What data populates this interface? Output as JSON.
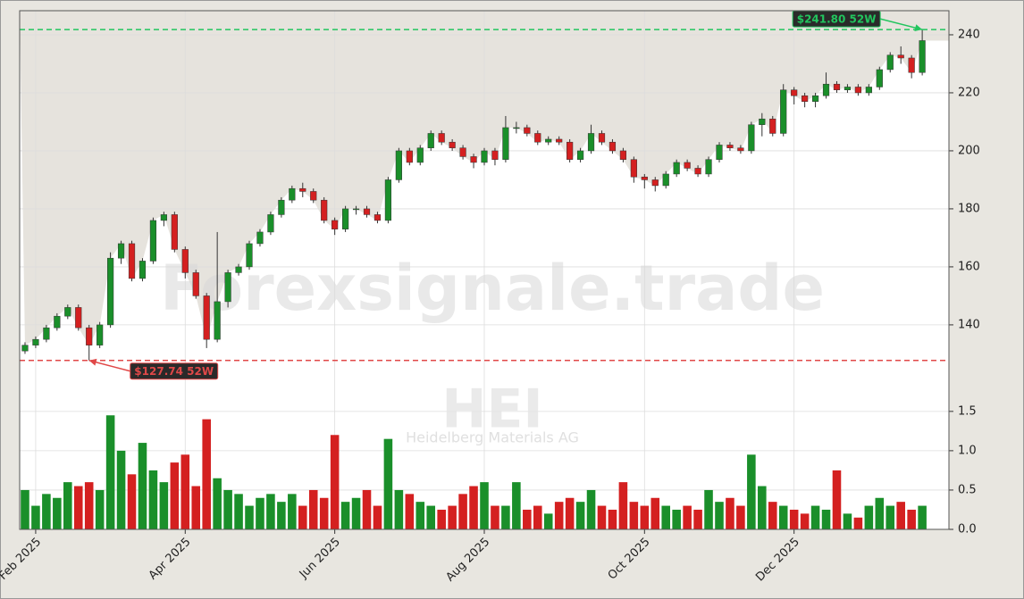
{
  "chart_data": {
    "type": "candlestick",
    "watermark": "Forexsignale.trade",
    "symbol": "HEI",
    "company": "Heidelberg Materials AG",
    "categories": [
      null,
      "Feb 2025",
      null,
      null,
      null,
      null,
      null,
      null,
      null,
      null,
      null,
      null,
      null,
      null,
      null,
      "Apr 2025",
      null,
      null,
      null,
      null,
      null,
      null,
      null,
      null,
      null,
      null,
      null,
      null,
      null,
      "Jun 2025",
      null,
      null,
      null,
      null,
      null,
      null,
      null,
      null,
      null,
      null,
      null,
      null,
      null,
      "Aug 2025",
      null,
      null,
      null,
      null,
      null,
      null,
      null,
      null,
      null,
      null,
      null,
      null,
      null,
      null,
      "Oct 2025",
      null,
      null,
      null,
      null,
      null,
      null,
      null,
      null,
      null,
      null,
      null,
      null,
      null,
      "Dec 2025",
      null,
      null,
      null,
      null,
      null,
      null,
      null,
      null,
      null,
      null,
      null,
      null
    ],
    "open": [
      131,
      133,
      135,
      139,
      143,
      146,
      139,
      133,
      140,
      163,
      168,
      156,
      162,
      176,
      178,
      166,
      158,
      150,
      135,
      148,
      158,
      160,
      168,
      172,
      178,
      183,
      187,
      186,
      183,
      176,
      173,
      180,
      180,
      178,
      176,
      190,
      200,
      196,
      201,
      206,
      203,
      201,
      198,
      196,
      200,
      197,
      208,
      208,
      206,
      203,
      204,
      203,
      197,
      200,
      206,
      203,
      200,
      197,
      191,
      190,
      188,
      192,
      196,
      194,
      192,
      197,
      202,
      201,
      200,
      209,
      211,
      206,
      221,
      219,
      217,
      219,
      223,
      221,
      222,
      220,
      222,
      228,
      233,
      232,
      227
    ],
    "high": [
      134,
      136,
      140,
      144,
      147,
      147,
      140,
      141,
      165,
      169,
      169,
      163,
      177,
      179,
      179,
      167,
      159,
      151,
      172,
      159,
      161,
      169,
      173,
      179,
      184,
      188,
      189,
      187,
      184,
      177,
      181,
      181,
      181,
      179,
      191,
      201,
      201,
      202,
      207,
      207,
      204,
      202,
      199,
      201,
      201,
      212,
      210,
      209,
      207,
      205,
      205,
      204,
      201,
      209,
      207,
      204,
      201,
      198,
      192,
      191,
      193,
      197,
      197,
      195,
      198,
      203,
      203,
      202,
      210,
      213,
      212,
      223,
      222,
      220,
      220,
      227,
      224,
      223,
      223,
      223,
      229,
      234,
      236,
      233,
      241.8
    ],
    "low": [
      130,
      132,
      134,
      138,
      142,
      138,
      127.74,
      132,
      139,
      161,
      155,
      155,
      161,
      174,
      165,
      156,
      149,
      132,
      134,
      146,
      157,
      159,
      167,
      171,
      177,
      182,
      184,
      182,
      175,
      171,
      172,
      178,
      177,
      175,
      175,
      189,
      195,
      195,
      200,
      202,
      200,
      197,
      194,
      195,
      195,
      196,
      206,
      205,
      202,
      202,
      202,
      196,
      196,
      199,
      202,
      199,
      196,
      189,
      187,
      186,
      187,
      191,
      193,
      191,
      191,
      196,
      200,
      199,
      199,
      205,
      205,
      205,
      216,
      215,
      215,
      218,
      220,
      220,
      219,
      219,
      221,
      227,
      230,
      225,
      226
    ],
    "close": [
      133,
      135,
      139,
      143,
      146,
      139,
      133,
      140,
      163,
      168,
      156,
      162,
      176,
      178,
      166,
      158,
      150,
      135,
      148,
      158,
      160,
      168,
      172,
      178,
      183,
      187,
      186,
      183,
      176,
      173,
      180,
      180,
      178,
      176,
      190,
      200,
      196,
      201,
      206,
      203,
      201,
      198,
      196,
      200,
      197,
      208,
      208,
      206,
      203,
      204,
      203,
      197,
      200,
      206,
      203,
      200,
      197,
      191,
      190,
      188,
      192,
      196,
      194,
      192,
      197,
      202,
      201,
      200,
      209,
      211,
      206,
      221,
      219,
      217,
      219,
      223,
      221,
      222,
      220,
      222,
      228,
      233,
      232,
      227,
      238
    ],
    "up_color": "#1a8f2a",
    "down_color": "#d42020",
    "ylim": [
      121.2,
      248.3
    ],
    "yticks": [
      140,
      160,
      180,
      200,
      220,
      240
    ],
    "grid": true,
    "volume": {
      "values": [
        0.5,
        0.3,
        0.45,
        0.4,
        0.6,
        0.55,
        0.6,
        0.5,
        1.45,
        1.0,
        0.7,
        1.1,
        0.75,
        0.6,
        0.85,
        0.95,
        0.55,
        1.4,
        0.65,
        0.5,
        0.45,
        0.3,
        0.4,
        0.45,
        0.35,
        0.45,
        0.3,
        0.5,
        0.4,
        1.2,
        0.35,
        0.4,
        0.5,
        0.3,
        1.15,
        0.5,
        0.45,
        0.35,
        0.3,
        0.25,
        0.3,
        0.45,
        0.55,
        0.6,
        0.3,
        0.3,
        0.6,
        0.25,
        0.3,
        0.2,
        0.35,
        0.4,
        0.35,
        0.5,
        0.3,
        0.25,
        0.6,
        0.35,
        0.3,
        0.4,
        0.3,
        0.25,
        0.3,
        0.25,
        0.5,
        0.35,
        0.4,
        0.3,
        0.95,
        0.55,
        0.35,
        0.3,
        0.25,
        0.2,
        0.3,
        0.25,
        0.75,
        0.2,
        0.15,
        0.3,
        0.4,
        0.3,
        0.35,
        0.25,
        0.3
      ],
      "ylim": [
        0,
        1.85
      ],
      "yticks": [
        {
          "value": 0,
          "label": "0.0"
        },
        0.5,
        {
          "value": 1,
          "label": "1.0"
        },
        1.5
      ]
    },
    "annotations": [
      {
        "label": "$241.80 52W",
        "value": 241.8,
        "color": "#22c55e"
      },
      {
        "label": "$127.74 52W",
        "value": 127.74,
        "color": "#e04848"
      }
    ]
  }
}
